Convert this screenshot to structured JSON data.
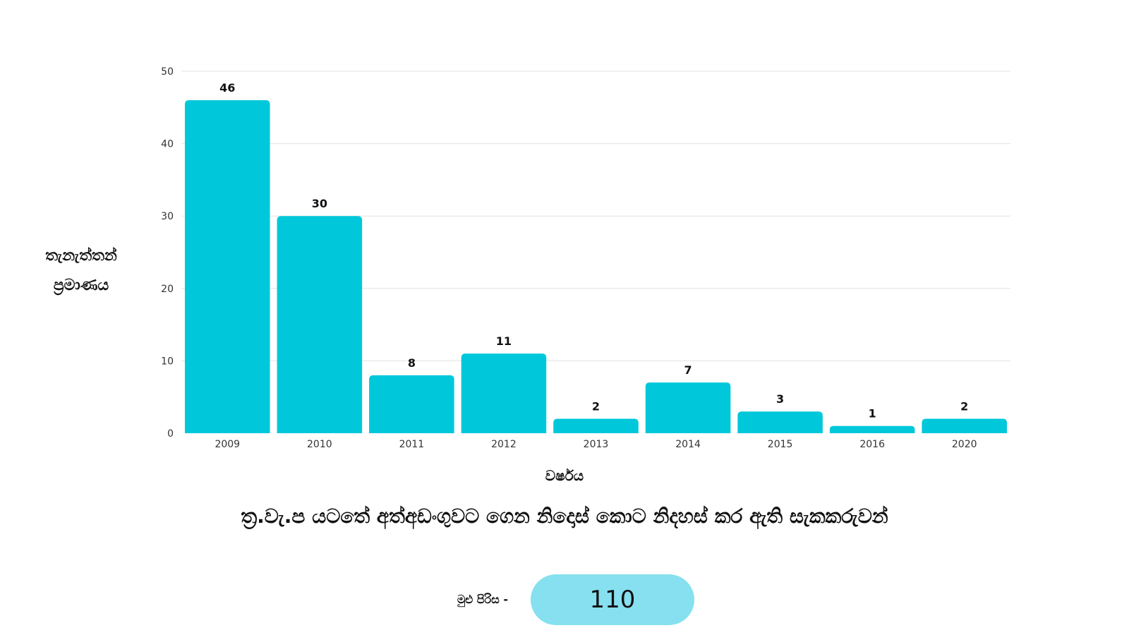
{
  "chart_data": {
    "type": "bar",
    "title": "ත්‍ර.වැ.ප යටතේ අත්අඩංගුවට ගෙන නිදොස් කොට නිදහස් කර ඇති සැකකරුවන්",
    "xlabel": "වර්ෂය",
    "ylabel_lines": [
      "තැනැත්තන්",
      "ප්‍රමාණය"
    ],
    "categories": [
      "2009",
      "2010",
      "2011",
      "2012",
      "2013",
      "2014",
      "2015",
      "2016",
      "2020"
    ],
    "values": [
      46,
      30,
      8,
      11,
      2,
      7,
      3,
      1,
      2
    ],
    "ylim": [
      0,
      50
    ],
    "yticks": [
      0,
      10,
      20,
      30,
      40,
      50
    ],
    "grid": true,
    "bar_color": "#00c8da"
  },
  "total": {
    "label": "මුළු පිරිස -",
    "value": "110",
    "pill_color": "#86e0ef"
  }
}
